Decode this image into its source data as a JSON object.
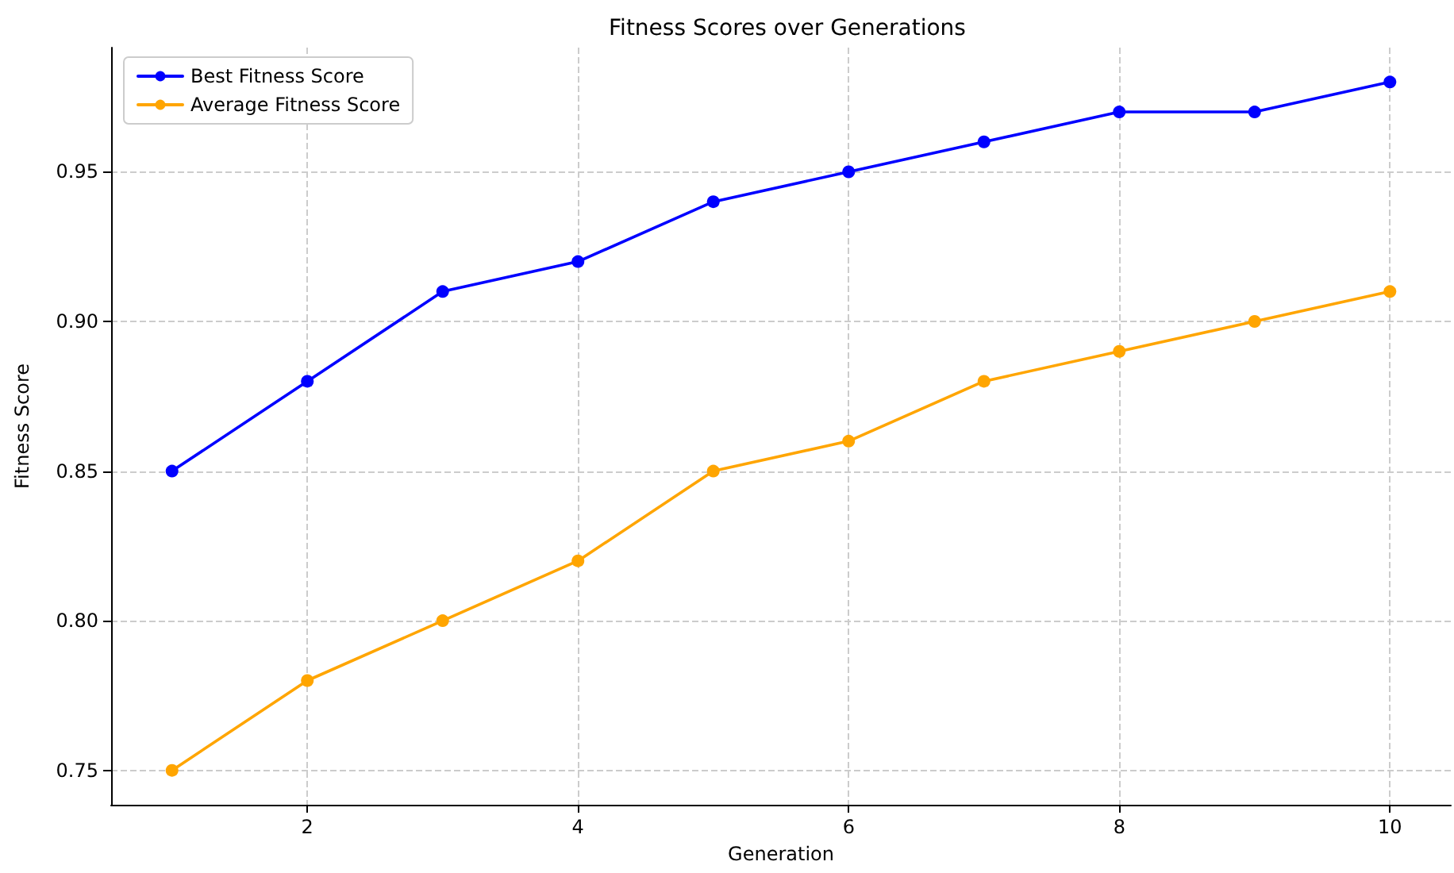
{
  "chart_data": {
    "type": "line",
    "title": "Fitness Scores over Generations",
    "xlabel": "Generation",
    "ylabel": "Fitness Score",
    "x": [
      1,
      2,
      3,
      4,
      5,
      6,
      7,
      8,
      9,
      10
    ],
    "series": [
      {
        "name": "Best Fitness Score",
        "color": "#0000ff",
        "values": [
          0.85,
          0.88,
          0.91,
          0.92,
          0.94,
          0.95,
          0.96,
          0.97,
          0.97,
          0.98
        ]
      },
      {
        "name": "Average Fitness Score",
        "color": "#ffa500",
        "values": [
          0.75,
          0.78,
          0.8,
          0.82,
          0.85,
          0.86,
          0.88,
          0.89,
          0.9,
          0.91
        ]
      }
    ],
    "xlim": [
      0.55,
      10.45
    ],
    "xticks": [
      2,
      4,
      6,
      8,
      10
    ],
    "ylim": [
      0.7385,
      0.9915
    ],
    "yticks": [
      0.75,
      {
        "value": 0.8,
        "label": "0.80"
      },
      0.85,
      {
        "value": 0.9,
        "label": "0.90"
      },
      0.95
    ],
    "grid": true,
    "legend": "top left",
    "marker": "circle",
    "line_style": "solid"
  }
}
